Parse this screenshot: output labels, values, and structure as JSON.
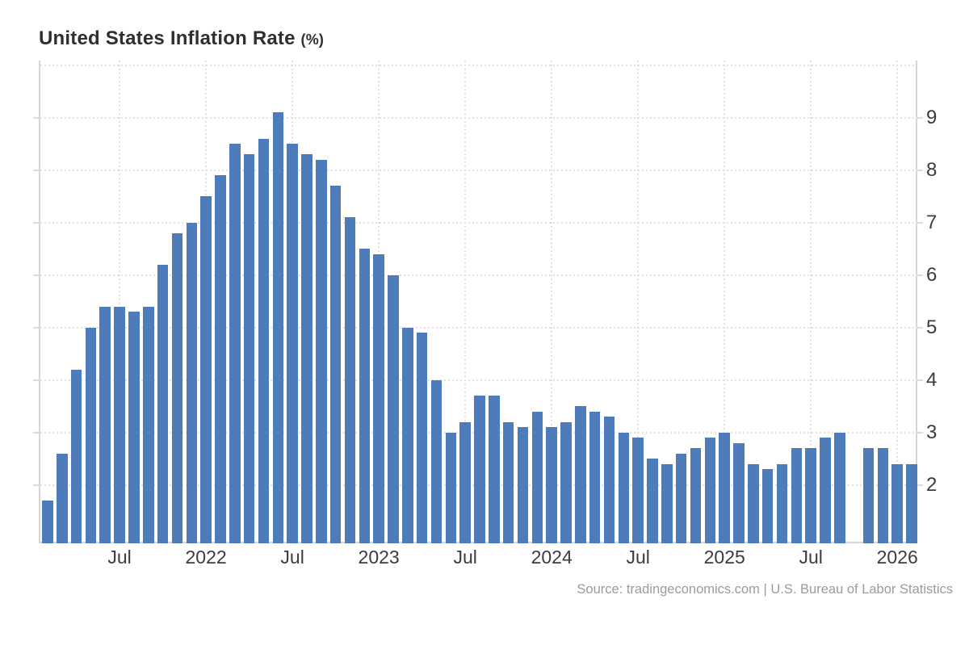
{
  "title": {
    "text": "United States Inflation Rate",
    "unit": "(%)"
  },
  "source": "Source: tradingeconomics.com | U.S. Bureau of Labor Statistics",
  "colors": {
    "bar": "#4e7cba",
    "gridline": "#e1e1e1",
    "axis_line": "#d6d6d6",
    "tick_label": "#3c3c3c",
    "title": "#2f2f2f",
    "source_text": "#9b9b9b",
    "background": "#ffffff"
  },
  "chart_data": {
    "type": "bar",
    "title": "United States Inflation Rate (%)",
    "ylabel": "",
    "xlabel": "",
    "legend": "none",
    "grid": "dotted",
    "y_axis_side": "right",
    "ylim": [
      0.89,
      10.09
    ],
    "y_gridlines": [
      2,
      3,
      4,
      5,
      6,
      7,
      8,
      9,
      10
    ],
    "y_ticks": [
      2,
      3,
      4,
      5,
      6,
      7,
      8,
      9
    ],
    "x": [
      "Feb 2021",
      "Mar 2021",
      "Apr 2021",
      "May 2021",
      "Jun 2021",
      "Jul 2021",
      "Aug 2021",
      "Sep 2021",
      "Oct 2021",
      "Nov 2021",
      "Dec 2021",
      "Jan 2022",
      "Feb 2022",
      "Mar 2022",
      "Apr 2022",
      "May 2022",
      "Jun 2022",
      "Jul 2022",
      "Aug 2022",
      "Sep 2022",
      "Oct 2022",
      "Nov 2022",
      "Dec 2022",
      "Jan 2023",
      "Feb 2023",
      "Mar 2023",
      "Apr 2023",
      "May 2023",
      "Jun 2023",
      "Jul 2023",
      "Aug 2023",
      "Sep 2023",
      "Oct 2023",
      "Nov 2023",
      "Dec 2023",
      "Jan 2024",
      "Feb 2024",
      "Mar 2024",
      "Apr 2024",
      "May 2024",
      "Jun 2024",
      "Jul 2024",
      "Aug 2024",
      "Sep 2024",
      "Oct 2024",
      "Nov 2024",
      "Dec 2024",
      "Jan 2025",
      "Feb 2025",
      "Mar 2025",
      "Apr 2025",
      "May 2025",
      "Jun 2025",
      "Jul 2025",
      "Aug 2025",
      "Sep 2025",
      "Oct 2025",
      "Nov 2025",
      "Dec 2025",
      "Jan 2026",
      "Feb 2026"
    ],
    "values": [
      1.7,
      2.6,
      4.2,
      5.0,
      5.4,
      5.4,
      5.3,
      5.4,
      6.2,
      6.8,
      7.0,
      7.5,
      7.9,
      8.5,
      8.3,
      8.6,
      9.1,
      8.5,
      8.3,
      8.2,
      7.7,
      7.1,
      6.5,
      6.4,
      6.0,
      5.0,
      4.9,
      4.0,
      3.0,
      3.2,
      3.7,
      3.7,
      3.2,
      3.1,
      3.4,
      3.1,
      3.2,
      3.5,
      3.4,
      3.3,
      3.0,
      2.9,
      2.5,
      2.4,
      2.6,
      2.7,
      2.9,
      3.0,
      2.8,
      2.4,
      2.3,
      2.4,
      2.7,
      2.7,
      2.9,
      3.0,
      null,
      2.7,
      2.7,
      2.4,
      2.4
    ],
    "missing_note": "Oct 2025 has no bar (gap in series)",
    "x_ticks": [
      {
        "index": 5,
        "label": "Jul"
      },
      {
        "index": 11,
        "label": "2022"
      },
      {
        "index": 17,
        "label": "Jul"
      },
      {
        "index": 23,
        "label": "2023"
      },
      {
        "index": 29,
        "label": "Jul"
      },
      {
        "index": 35,
        "label": "2024"
      },
      {
        "index": 41,
        "label": "Jul"
      },
      {
        "index": 47,
        "label": "2025"
      },
      {
        "index": 53,
        "label": "Jul"
      },
      {
        "index": 59,
        "label": "2026"
      }
    ]
  }
}
